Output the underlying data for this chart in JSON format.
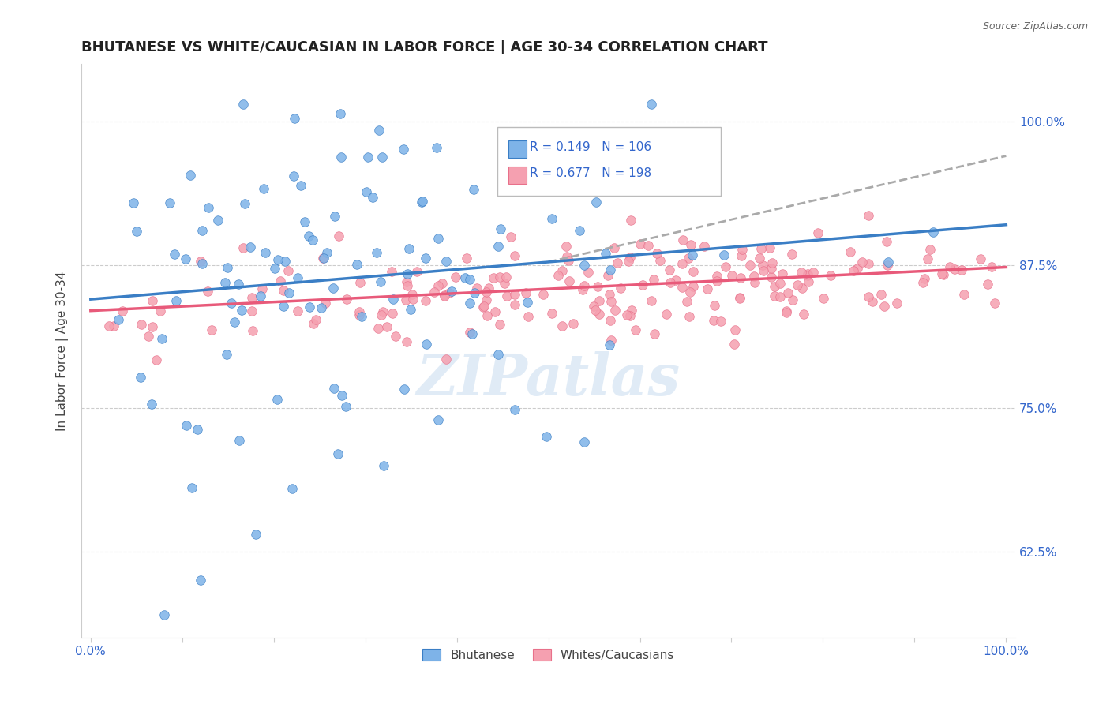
{
  "title": "BHUTANESE VS WHITE/CAUCASIAN IN LABOR FORCE | AGE 30-34 CORRELATION CHART",
  "source": "Source: ZipAtlas.com",
  "ylabel": "In Labor Force | Age 30-34",
  "ytick_labels": [
    "62.5%",
    "75.0%",
    "87.5%",
    "100.0%"
  ],
  "ytick_values": [
    0.625,
    0.75,
    0.875,
    1.0
  ],
  "xlim": [
    0.0,
    1.0
  ],
  "ylim": [
    0.55,
    1.05
  ],
  "blue_color": "#7EB3E8",
  "pink_color": "#F5A0B0",
  "blue_line_color": "#3A7EC5",
  "pink_line_color": "#E85A7A",
  "dashed_line_color": "#AAAAAA",
  "legend_r_blue": "0.149",
  "legend_n_blue": "106",
  "legend_r_pink": "0.677",
  "legend_n_pink": "198",
  "legend_color_blue": "#4472C4",
  "legend_color_pink": "#E8708A",
  "watermark": "ZIPatlas",
  "blue_intercept": 0.845,
  "blue_slope": 0.065,
  "pink_intercept": 0.835,
  "pink_slope": 0.038,
  "seed": 42,
  "n_blue": 106,
  "n_pink": 198
}
